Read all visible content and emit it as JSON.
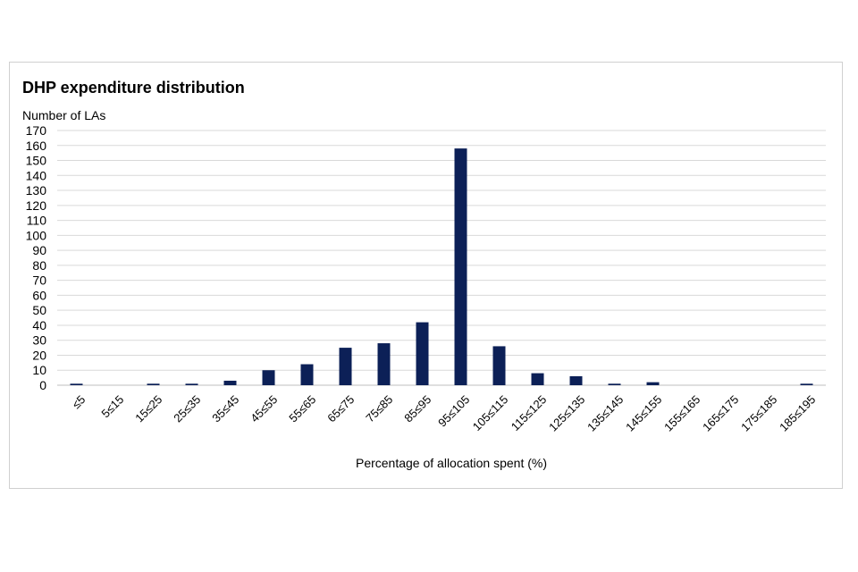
{
  "chart_data": {
    "type": "bar",
    "title": "DHP expenditure distribution",
    "ylabel": "Number of LAs",
    "xlabel": "Percentage of allocation spent (%)",
    "ylim": [
      0,
      170
    ],
    "ytick_step": 10,
    "grid": true,
    "legend": "none",
    "bar_color": "#0c2057",
    "categories": [
      "≤5",
      "5≤15",
      "15≤25",
      "25≤35",
      "35≤45",
      "45≤55",
      "55≤65",
      "65≤75",
      "75≤85",
      "85≤95",
      "95≤105",
      "105≤115",
      "115≤125",
      "125≤135",
      "135≤145",
      "145≤155",
      "155≤165",
      "165≤175",
      "175≤185",
      "185≤195"
    ],
    "values": [
      1,
      0,
      1,
      1,
      3,
      10,
      14,
      25,
      28,
      42,
      158,
      26,
      8,
      6,
      1,
      2,
      0,
      0,
      0,
      1
    ]
  }
}
